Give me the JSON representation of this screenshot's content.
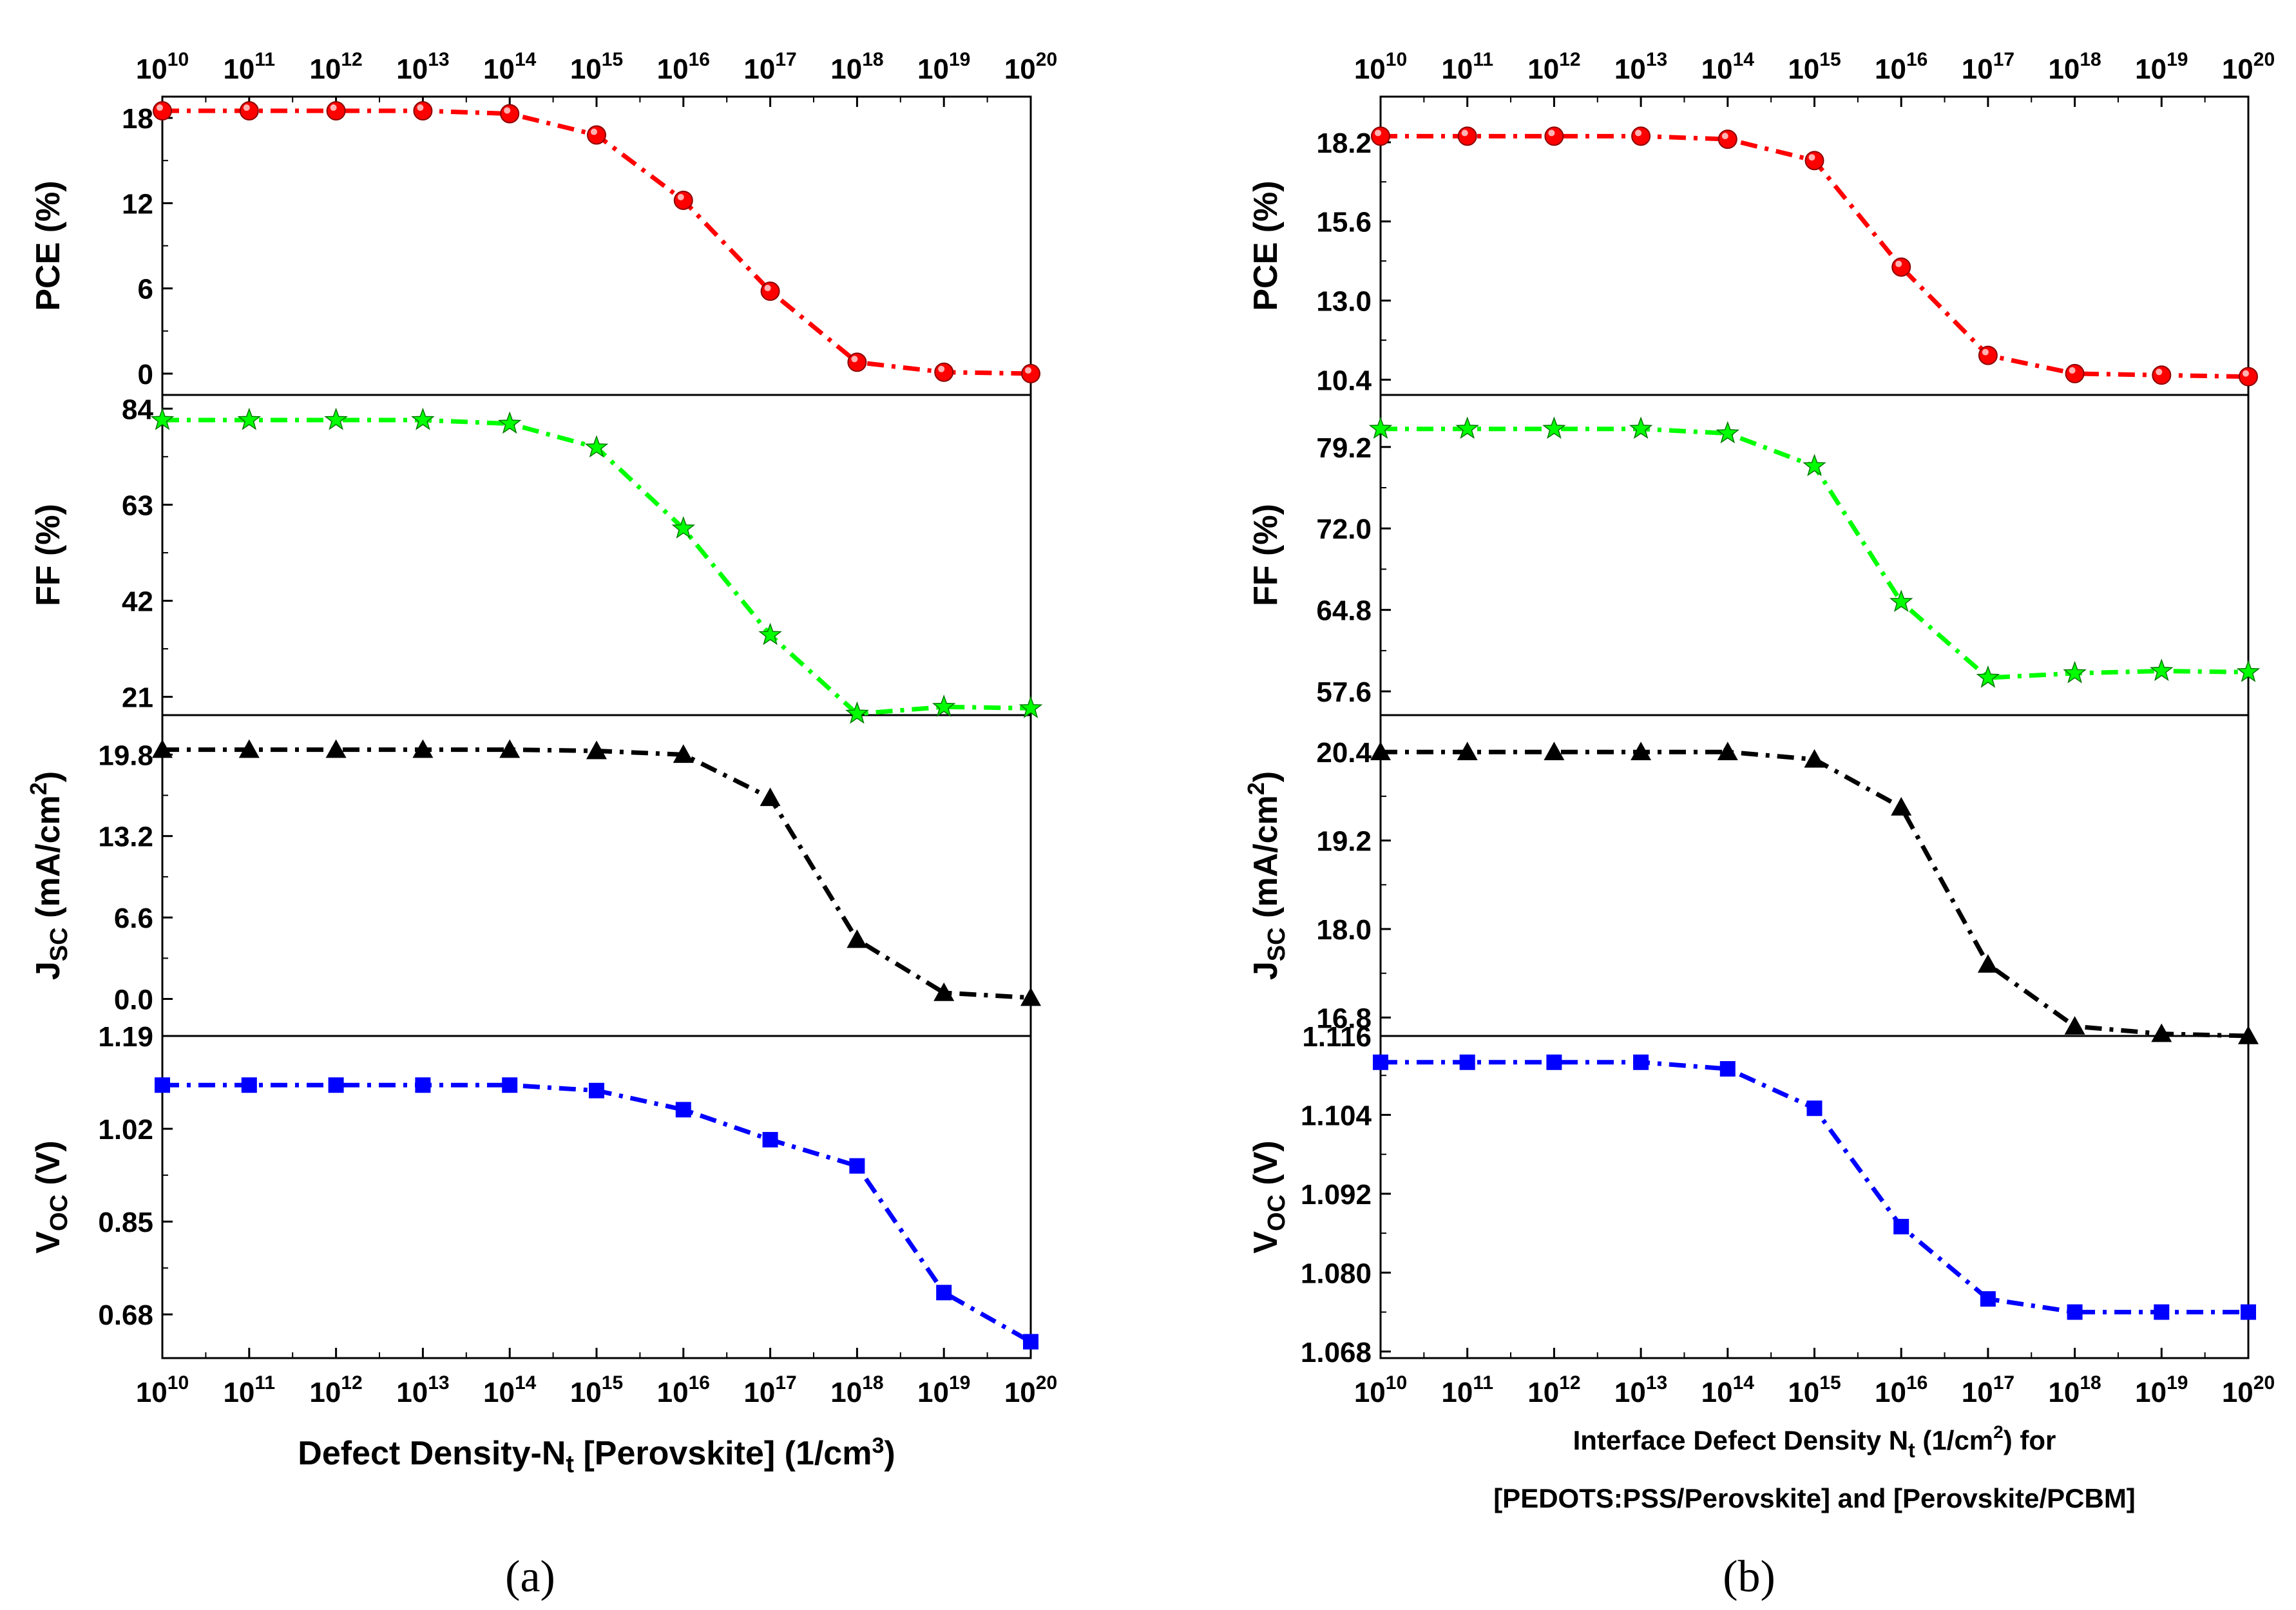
{
  "chart_data": [
    {
      "type": "line",
      "panel_label": "(a)",
      "x": [
        "1e10",
        "1e11",
        "1e12",
        "1e13",
        "1e14",
        "1e15",
        "1e16",
        "1e17",
        "1e18",
        "1e19",
        "1e20"
      ],
      "x_tick_labels": [
        {
          "base": "10",
          "exp": "10"
        },
        {
          "base": "10",
          "exp": "11"
        },
        {
          "base": "10",
          "exp": "12"
        },
        {
          "base": "10",
          "exp": "13"
        },
        {
          "base": "10",
          "exp": "14"
        },
        {
          "base": "10",
          "exp": "15"
        },
        {
          "base": "10",
          "exp": "16"
        },
        {
          "base": "10",
          "exp": "17"
        },
        {
          "base": "10",
          "exp": "18"
        },
        {
          "base": "10",
          "exp": "19"
        },
        {
          "base": "10",
          "exp": "20"
        }
      ],
      "x_scale": "log",
      "xlabel": {
        "prefix": "Defect Density-N",
        "sub": "t",
        "mid": " [Perovskite] (1/cm",
        "sup": "3",
        "suffix": ")"
      },
      "subplots": [
        {
          "ylabel": {
            "main": "PCE (%)"
          },
          "yticks": [
            "0",
            "6",
            "12",
            "18"
          ],
          "ylim": [
            -1.5,
            19.5
          ],
          "color": "#ff0000",
          "marker": "circle",
          "values": [
            18.5,
            18.5,
            18.5,
            18.5,
            18.3,
            16.8,
            12.2,
            5.8,
            0.8,
            0.1,
            0.0
          ]
        },
        {
          "ylabel": {
            "main": "FF (%)"
          },
          "yticks": [
            "21",
            "42",
            "63",
            "84"
          ],
          "ylim": [
            17,
            87
          ],
          "color": "#00ff00",
          "marker": "star",
          "values": [
            81.5,
            81.5,
            81.5,
            81.5,
            80.7,
            75.5,
            57.8,
            34.5,
            17.3,
            18.8,
            18.5
          ]
        },
        {
          "ylabel": {
            "main": "J",
            "sub": "SC",
            "rest": " (mA/cm",
            "sup": "2",
            "end": ")"
          },
          "yticks": [
            "0.0",
            "6.6",
            "13.2",
            "19.8"
          ],
          "ylim": [
            -3,
            23
          ],
          "color": "#000000",
          "marker": "triangle",
          "values": [
            20.2,
            20.2,
            20.2,
            20.2,
            20.2,
            20.1,
            19.8,
            16.3,
            4.8,
            0.5,
            0.1
          ]
        },
        {
          "ylabel": {
            "main": "V",
            "sub": "OC",
            "rest": " (V)"
          },
          "yticks": [
            "0.68",
            "0.85",
            "1.02",
            "1.19"
          ],
          "ylim": [
            0.6,
            1.19
          ],
          "color": "#0000ff",
          "marker": "square",
          "values": [
            1.1,
            1.1,
            1.1,
            1.1,
            1.1,
            1.09,
            1.055,
            1.0,
            0.952,
            0.72,
            0.63
          ]
        }
      ]
    },
    {
      "type": "line",
      "panel_label": "(b)",
      "x": [
        "1e10",
        "1e11",
        "1e12",
        "1e13",
        "1e14",
        "1e15",
        "1e16",
        "1e17",
        "1e18",
        "1e19",
        "1e20"
      ],
      "x_tick_labels": [
        {
          "base": "10",
          "exp": "10"
        },
        {
          "base": "10",
          "exp": "11"
        },
        {
          "base": "10",
          "exp": "12"
        },
        {
          "base": "10",
          "exp": "13"
        },
        {
          "base": "10",
          "exp": "14"
        },
        {
          "base": "10",
          "exp": "15"
        },
        {
          "base": "10",
          "exp": "16"
        },
        {
          "base": "10",
          "exp": "17"
        },
        {
          "base": "10",
          "exp": "18"
        },
        {
          "base": "10",
          "exp": "19"
        },
        {
          "base": "10",
          "exp": "20"
        }
      ],
      "x_scale": "log",
      "xlabel": {
        "prefix": "Interface Defect Density N",
        "sub": "t",
        "mid": " (1/cm",
        "sup": "2",
        "suffix": ") for",
        "line2": "[PEDOTS:PSS/Perovskite] and [Perovskite/PCBM]"
      },
      "subplots": [
        {
          "ylabel": {
            "main": "PCE (%)"
          },
          "yticks": [
            "10.4",
            "13.0",
            "15.6",
            "18.2"
          ],
          "ylim": [
            9.9,
            19.7
          ],
          "color": "#ff0000",
          "marker": "circle",
          "values": [
            18.4,
            18.4,
            18.4,
            18.4,
            18.3,
            17.6,
            14.1,
            11.2,
            10.6,
            10.55,
            10.5
          ]
        },
        {
          "ylabel": {
            "main": "FF (%)"
          },
          "yticks": [
            "57.6",
            "64.8",
            "72.0",
            "79.2"
          ],
          "ylim": [
            55.5,
            83.8
          ],
          "color": "#00ff00",
          "marker": "star",
          "values": [
            80.8,
            80.8,
            80.8,
            80.8,
            80.4,
            77.5,
            65.5,
            58.8,
            59.2,
            59.4,
            59.3
          ]
        },
        {
          "ylabel": {
            "main": "J",
            "sub": "SC",
            "rest": " (mA/cm",
            "sup": "2",
            "end": ")"
          },
          "yticks": [
            "16.8",
            "18.0",
            "19.2",
            "20.4"
          ],
          "ylim": [
            16.55,
            20.9
          ],
          "color": "#000000",
          "marker": "triangle",
          "values": [
            20.4,
            20.4,
            20.4,
            20.4,
            20.4,
            20.3,
            19.65,
            17.52,
            16.68,
            16.58,
            16.55
          ]
        },
        {
          "ylabel": {
            "main": "V",
            "sub": "OC",
            "rest": " (V)"
          },
          "yticks": [
            "1.068",
            "1.080",
            "1.092",
            "1.104",
            "1.116"
          ],
          "ylim": [
            1.067,
            1.116
          ],
          "color": "#0000ff",
          "marker": "square",
          "values": [
            1.112,
            1.112,
            1.112,
            1.112,
            1.111,
            1.105,
            1.087,
            1.076,
            1.074,
            1.074,
            1.074
          ]
        }
      ]
    }
  ]
}
